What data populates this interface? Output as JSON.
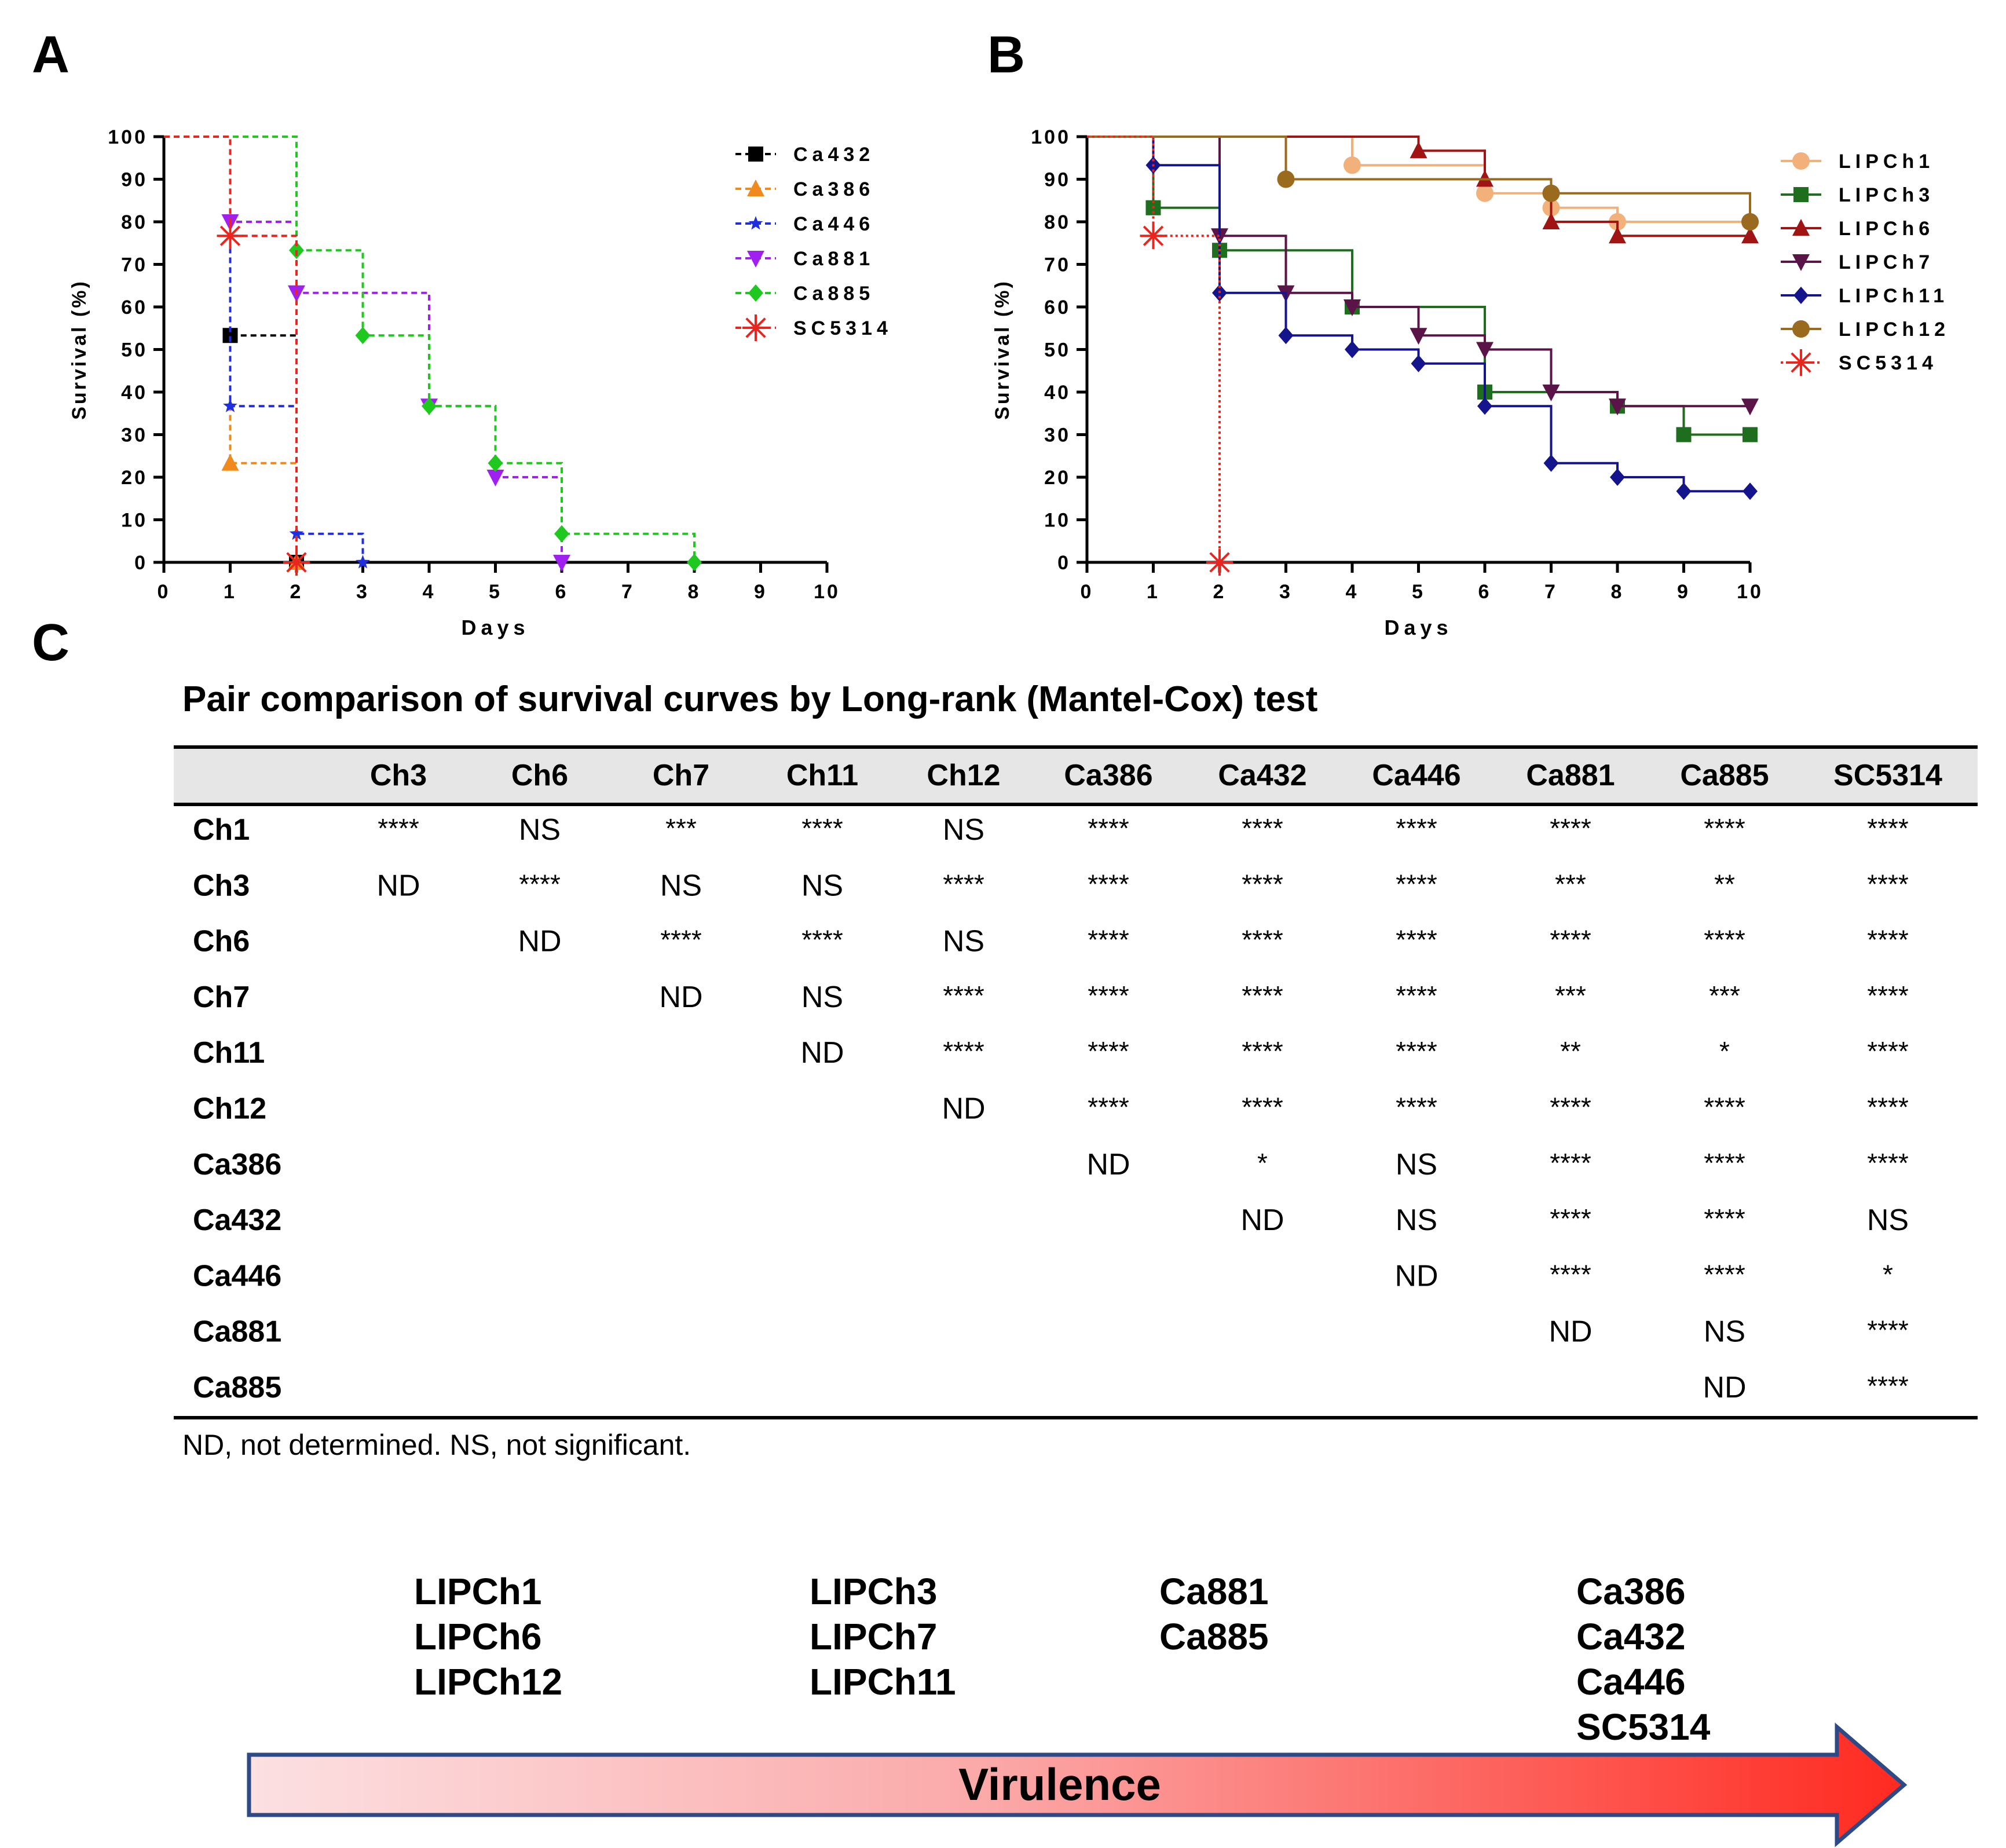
{
  "panels": {
    "a": "A",
    "b": "B",
    "c": "C"
  },
  "chart_data": [
    {
      "type": "line",
      "step": true,
      "panel": "A",
      "xlabel": "Days",
      "ylabel": "Survival (%)",
      "xlim": [
        0,
        10
      ],
      "ylim": [
        0,
        100
      ],
      "xticks": [
        0,
        1,
        2,
        3,
        4,
        5,
        6,
        7,
        8,
        9,
        10
      ],
      "yticks": [
        0,
        10,
        20,
        30,
        40,
        50,
        60,
        70,
        80,
        90,
        100
      ],
      "line_style": "dashed",
      "legend_position": "top-right",
      "series": [
        {
          "name": "Ca432",
          "color": "#000000",
          "marker": "square",
          "x": [
            0,
            1,
            2
          ],
          "y": [
            100,
            53.3,
            0
          ],
          "events": [
            [
              1,
              53.3
            ],
            [
              2,
              0
            ]
          ]
        },
        {
          "name": "Ca386",
          "color": "#F08A1C",
          "marker": "triangle",
          "x": [
            0,
            1,
            2
          ],
          "y": [
            100,
            23.3,
            0
          ],
          "events": [
            [
              1,
              23.3
            ],
            [
              2,
              0
            ]
          ]
        },
        {
          "name": "Ca446",
          "color": "#1F2FE0",
          "marker": "star",
          "x": [
            0,
            1,
            2,
            3
          ],
          "y": [
            100,
            36.7,
            6.7,
            0
          ],
          "events": [
            [
              1,
              36.7
            ],
            [
              2,
              6.7
            ],
            [
              3,
              0
            ]
          ]
        },
        {
          "name": "Ca881",
          "color": "#A020F0",
          "marker": "triangle-down",
          "x": [
            0,
            1,
            2,
            4,
            5,
            6
          ],
          "y": [
            100,
            80,
            63.3,
            36.7,
            20,
            0
          ],
          "events": [
            [
              1,
              80
            ],
            [
              2,
              63.3
            ],
            [
              4,
              36.7
            ],
            [
              5,
              20
            ],
            [
              6,
              0
            ]
          ]
        },
        {
          "name": "Ca885",
          "color": "#1EC81E",
          "marker": "diamond",
          "x": [
            0,
            2,
            3,
            4,
            5,
            6,
            8
          ],
          "y": [
            100,
            73.3,
            53.3,
            36.7,
            23.3,
            6.7,
            0
          ],
          "events": [
            [
              2,
              73.3
            ],
            [
              3,
              53.3
            ],
            [
              4,
              36.7
            ],
            [
              5,
              23.3
            ],
            [
              6,
              6.7
            ],
            [
              8,
              0
            ]
          ]
        },
        {
          "name": "SC5314",
          "color": "#E8251E",
          "marker": "asterisk",
          "x": [
            0,
            1,
            2
          ],
          "y": [
            100,
            76.7,
            0
          ],
          "events": [
            [
              1,
              76.7
            ],
            [
              2,
              0
            ]
          ]
        }
      ]
    },
    {
      "type": "line",
      "step": true,
      "panel": "B",
      "xlabel": "Days",
      "ylabel": "Survival (%)",
      "xlim": [
        0,
        10
      ],
      "ylim": [
        0,
        100
      ],
      "xticks": [
        0,
        1,
        2,
        3,
        4,
        5,
        6,
        7,
        8,
        9,
        10
      ],
      "yticks": [
        0,
        10,
        20,
        30,
        40,
        50,
        60,
        70,
        80,
        90,
        100
      ],
      "line_style": "solid",
      "legend_position": "top-right",
      "series": [
        {
          "name": "LIPCh1",
          "color": "#F2B07A",
          "marker": "circle",
          "x": [
            0,
            4,
            6,
            7,
            8,
            10
          ],
          "y": [
            100,
            93.3,
            86.7,
            83.3,
            80,
            80
          ],
          "events": [
            [
              4,
              93.3
            ],
            [
              6,
              86.7
            ],
            [
              7,
              83.3
            ],
            [
              8,
              80
            ],
            [
              10,
              80
            ]
          ]
        },
        {
          "name": "LIPCh3",
          "color": "#1E6E1E",
          "marker": "square",
          "x": [
            0,
            1,
            2,
            4,
            6,
            8,
            9,
            10
          ],
          "y": [
            100,
            83.3,
            73.3,
            60,
            40,
            36.7,
            30,
            30
          ],
          "events": [
            [
              1,
              83.3
            ],
            [
              2,
              73.3
            ],
            [
              4,
              60
            ],
            [
              6,
              40
            ],
            [
              8,
              36.7
            ],
            [
              9,
              30
            ],
            [
              10,
              30
            ]
          ]
        },
        {
          "name": "LIPCh6",
          "color": "#A01414",
          "marker": "triangle",
          "x": [
            0,
            5,
            6,
            7,
            8,
            10
          ],
          "y": [
            100,
            96.7,
            90,
            80,
            76.7,
            76.7
          ],
          "events": [
            [
              5,
              96.7
            ],
            [
              6,
              90
            ],
            [
              7,
              80
            ],
            [
              8,
              76.7
            ],
            [
              10,
              76.7
            ]
          ]
        },
        {
          "name": "LIPCh7",
          "color": "#5A1448",
          "marker": "triangle-down",
          "x": [
            0,
            2,
            3,
            4,
            5,
            6,
            7,
            8,
            10
          ],
          "y": [
            100,
            76.7,
            63.3,
            60,
            53.3,
            50,
            40,
            36.7,
            36.7
          ],
          "events": [
            [
              2,
              76.7
            ],
            [
              3,
              63.3
            ],
            [
              4,
              60
            ],
            [
              5,
              53.3
            ],
            [
              6,
              50
            ],
            [
              7,
              40
            ],
            [
              8,
              36.7
            ],
            [
              10,
              36.7
            ]
          ]
        },
        {
          "name": "LIPCh11",
          "color": "#14148C",
          "marker": "diamond",
          "x": [
            0,
            1,
            2,
            3,
            4,
            5,
            6,
            7,
            8,
            9,
            10
          ],
          "y": [
            100,
            93.3,
            63.3,
            53.3,
            50,
            46.7,
            36.7,
            23.3,
            20,
            16.7,
            16.7
          ],
          "events": [
            [
              1,
              93.3
            ],
            [
              2,
              63.3
            ],
            [
              3,
              53.3
            ],
            [
              4,
              50
            ],
            [
              5,
              46.7
            ],
            [
              6,
              36.7
            ],
            [
              7,
              23.3
            ],
            [
              8,
              20
            ],
            [
              9,
              16.7
            ],
            [
              10,
              16.7
            ]
          ]
        },
        {
          "name": "LIPCh12",
          "color": "#9A6A1E",
          "marker": "circle",
          "x": [
            0,
            3,
            7,
            10
          ],
          "y": [
            100,
            90,
            86.7,
            80
          ],
          "events": [
            [
              3,
              90
            ],
            [
              7,
              86.7
            ],
            [
              10,
              80
            ]
          ]
        },
        {
          "name": "SC5314",
          "color": "#E8251E",
          "marker": "asterisk",
          "dotted": true,
          "x": [
            0,
            1,
            2
          ],
          "y": [
            100,
            76.7,
            0
          ],
          "events": [
            [
              1,
              76.7
            ],
            [
              2,
              0
            ]
          ]
        }
      ]
    }
  ],
  "table": {
    "title": "Pair comparison of survival curves by Long-rank (Mantel-Cox) test",
    "columns": [
      "Ch3",
      "Ch6",
      "Ch7",
      "Ch11",
      "Ch12",
      "Ca386",
      "Ca432",
      "Ca446",
      "Ca881",
      "Ca885",
      "SC5314"
    ],
    "rows": [
      {
        "label": "Ch1",
        "cells": [
          "****",
          "NS",
          "***",
          "****",
          "NS",
          "****",
          "****",
          "****",
          "****",
          "****",
          "****"
        ]
      },
      {
        "label": "Ch3",
        "cells": [
          "ND",
          "****",
          "NS",
          "NS",
          "****",
          "****",
          "****",
          "****",
          "***",
          "**",
          "****"
        ]
      },
      {
        "label": "Ch6",
        "cells": [
          "",
          "ND",
          "****",
          "****",
          "NS",
          "****",
          "****",
          "****",
          "****",
          "****",
          "****"
        ]
      },
      {
        "label": "Ch7",
        "cells": [
          "",
          "",
          "ND",
          "NS",
          "****",
          "****",
          "****",
          "****",
          "***",
          "***",
          "****"
        ]
      },
      {
        "label": "Ch11",
        "cells": [
          "",
          "",
          "",
          "ND",
          "****",
          "****",
          "****",
          "****",
          "**",
          "*",
          "****"
        ]
      },
      {
        "label": "Ch12",
        "cells": [
          "",
          "",
          "",
          "",
          "ND",
          "****",
          "****",
          "****",
          "****",
          "****",
          "****"
        ]
      },
      {
        "label": "Ca386",
        "cells": [
          "",
          "",
          "",
          "",
          "",
          "ND",
          "*",
          "NS",
          "****",
          "****",
          "****"
        ]
      },
      {
        "label": "Ca432",
        "cells": [
          "",
          "",
          "",
          "",
          "",
          "",
          "ND",
          "NS",
          "****",
          "****",
          "NS"
        ]
      },
      {
        "label": "Ca446",
        "cells": [
          "",
          "",
          "",
          "",
          "",
          "",
          "",
          "ND",
          "****",
          "****",
          "*"
        ]
      },
      {
        "label": "Ca881",
        "cells": [
          "",
          "",
          "",
          "",
          "",
          "",
          "",
          "",
          "ND",
          "NS",
          "****"
        ]
      },
      {
        "label": "Ca885",
        "cells": [
          "",
          "",
          "",
          "",
          "",
          "",
          "",
          "",
          "",
          "ND",
          "****"
        ]
      }
    ],
    "footnote": "ND, not determined. NS, not significant."
  },
  "virulence": {
    "groups": [
      [
        "LIPCh1",
        "LIPCh6",
        "LIPCh12"
      ],
      [
        "LIPCh3",
        "LIPCh7",
        "LIPCh11"
      ],
      [
        "Ca881",
        "Ca885"
      ],
      [
        "Ca386",
        "Ca432",
        "Ca446",
        "SC5314"
      ]
    ],
    "arrow_label": "Virulence",
    "gradient_start": "#FCE0E2",
    "gradient_end": "#FF2A20",
    "border_color": "#2E4A86"
  }
}
